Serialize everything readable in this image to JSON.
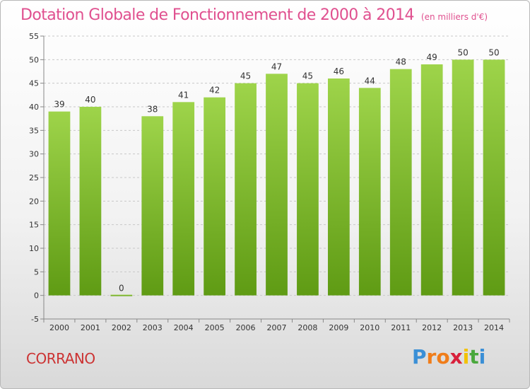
{
  "chart_data": {
    "type": "bar",
    "title": "Dotation Globale de Fonctionnement de 2000 à 2014",
    "subtitle": "(en milliers d'€)",
    "xlabel": "",
    "ylabel": "",
    "categories": [
      "2000",
      "2001",
      "2002",
      "2003",
      "2004",
      "2005",
      "2006",
      "2007",
      "2008",
      "2009",
      "2010",
      "2011",
      "2012",
      "2013",
      "2014"
    ],
    "values": [
      39,
      40,
      0,
      38,
      41,
      42,
      45,
      47,
      45,
      46,
      44,
      48,
      49,
      50,
      50
    ],
    "ylim": [
      -5,
      55
    ],
    "yticks": [
      -5,
      0,
      5,
      10,
      15,
      20,
      25,
      30,
      35,
      40,
      45,
      50,
      55
    ],
    "grid": "horizontal dashed",
    "bar_color_top": "#9ed44a",
    "bar_color_bottom": "#5f9b14",
    "title_color": "#e0508f"
  },
  "commune": "CORRANO",
  "brand": {
    "name": "Proxiti",
    "letters": [
      "P",
      "r",
      "o",
      "x",
      "i",
      "t",
      "i"
    ],
    "colors": [
      "#3a8fd6",
      "#f07d1a",
      "#f07d1a",
      "#d8203b",
      "#f2c200",
      "#4aa83c",
      "#3a8fd6"
    ]
  }
}
